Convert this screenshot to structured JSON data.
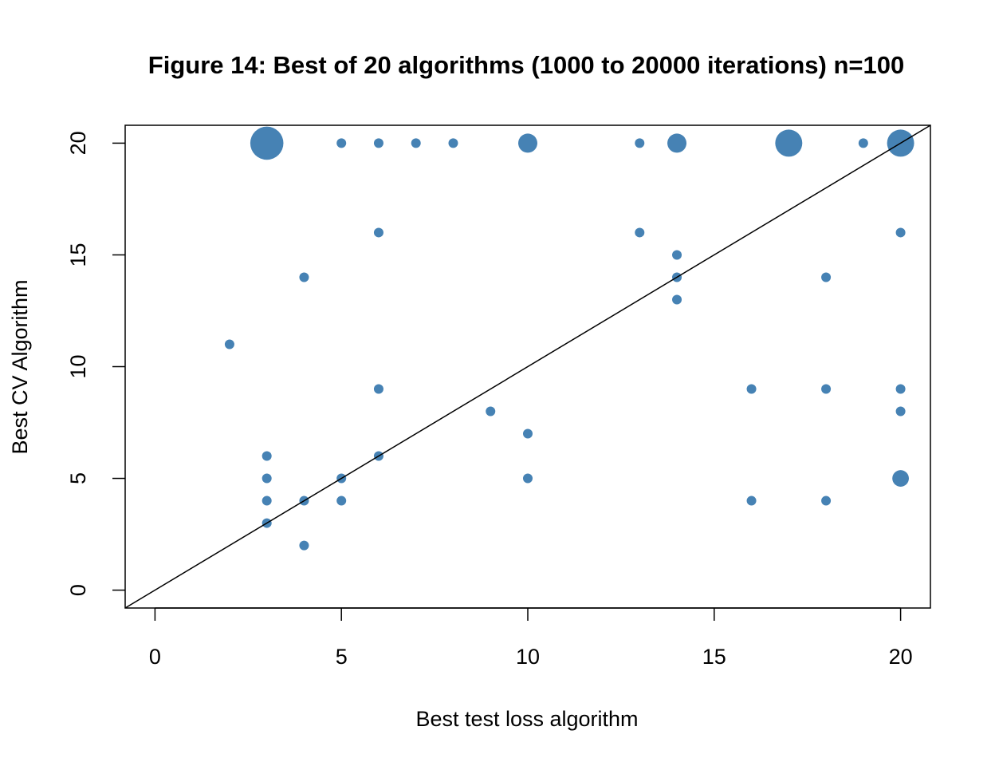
{
  "chart_data": {
    "type": "scatter",
    "title": "Figure 14: Best of 20 algorithms (1000 to 20000 iterations) n=100",
    "xlabel": "Best test loss algorithm",
    "ylabel": "Best CV Algorithm",
    "xlim": [
      -0.8,
      20.8
    ],
    "ylim": [
      -0.8,
      20.8
    ],
    "xticks": [
      0,
      5,
      10,
      15,
      20
    ],
    "yticks": [
      0,
      5,
      10,
      15,
      20
    ],
    "grid": false,
    "reference_line": {
      "type": "identity",
      "slope": 1,
      "intercept": 0,
      "color": "#000000"
    },
    "point_color": "#4682b4",
    "size_note": "marker size proportional to count",
    "points": [
      {
        "x": 3,
        "y": 20,
        "count": 12
      },
      {
        "x": 5,
        "y": 20,
        "count": 1
      },
      {
        "x": 6,
        "y": 20,
        "count": 1
      },
      {
        "x": 7,
        "y": 20,
        "count": 1
      },
      {
        "x": 8,
        "y": 20,
        "count": 1
      },
      {
        "x": 10,
        "y": 20,
        "count": 4
      },
      {
        "x": 13,
        "y": 20,
        "count": 1
      },
      {
        "x": 14,
        "y": 20,
        "count": 4
      },
      {
        "x": 17,
        "y": 20,
        "count": 8
      },
      {
        "x": 19,
        "y": 20,
        "count": 1
      },
      {
        "x": 20,
        "y": 20,
        "count": 8
      },
      {
        "x": 6,
        "y": 16,
        "count": 1
      },
      {
        "x": 13,
        "y": 16,
        "count": 1
      },
      {
        "x": 20,
        "y": 16,
        "count": 1
      },
      {
        "x": 14,
        "y": 15,
        "count": 1
      },
      {
        "x": 4,
        "y": 14,
        "count": 1
      },
      {
        "x": 14,
        "y": 14,
        "count": 1
      },
      {
        "x": 18,
        "y": 14,
        "count": 1
      },
      {
        "x": 14,
        "y": 13,
        "count": 1
      },
      {
        "x": 2,
        "y": 11,
        "count": 1
      },
      {
        "x": 6,
        "y": 9,
        "count": 1
      },
      {
        "x": 16,
        "y": 9,
        "count": 1
      },
      {
        "x": 18,
        "y": 9,
        "count": 1
      },
      {
        "x": 20,
        "y": 9,
        "count": 1
      },
      {
        "x": 9,
        "y": 8,
        "count": 1
      },
      {
        "x": 20,
        "y": 8,
        "count": 1
      },
      {
        "x": 10,
        "y": 7,
        "count": 1
      },
      {
        "x": 3,
        "y": 6,
        "count": 1
      },
      {
        "x": 6,
        "y": 6,
        "count": 1
      },
      {
        "x": 3,
        "y": 5,
        "count": 1
      },
      {
        "x": 5,
        "y": 5,
        "count": 1
      },
      {
        "x": 10,
        "y": 5,
        "count": 1
      },
      {
        "x": 20,
        "y": 5,
        "count": 3
      },
      {
        "x": 3,
        "y": 4,
        "count": 1
      },
      {
        "x": 4,
        "y": 4,
        "count": 1
      },
      {
        "x": 5,
        "y": 4,
        "count": 1
      },
      {
        "x": 16,
        "y": 4,
        "count": 1
      },
      {
        "x": 18,
        "y": 4,
        "count": 1
      },
      {
        "x": 3,
        "y": 3,
        "count": 1
      },
      {
        "x": 4,
        "y": 2,
        "count": 1
      }
    ]
  }
}
